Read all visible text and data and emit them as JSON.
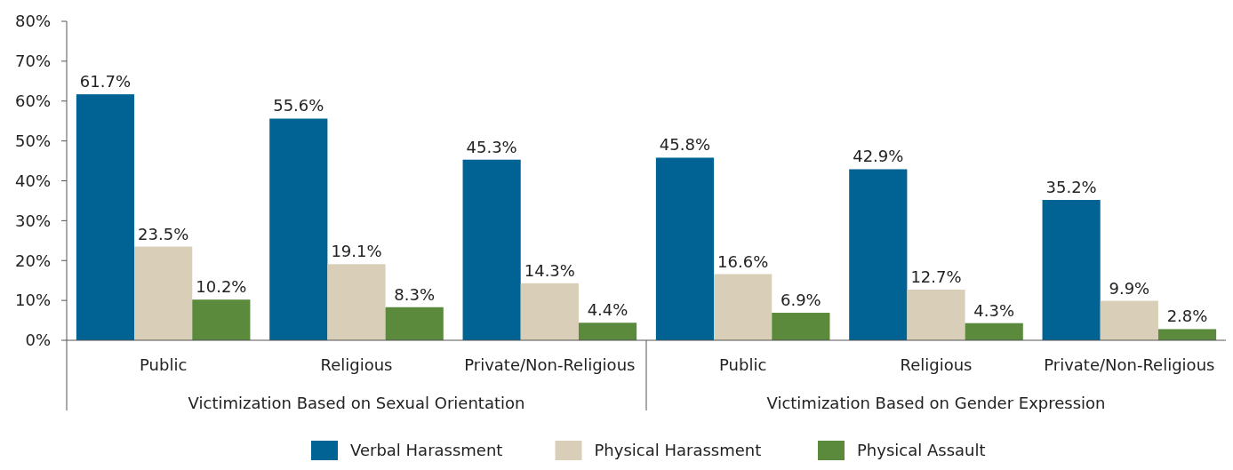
{
  "chart_data": {
    "type": "bar",
    "categories": [
      "Public",
      "Religious",
      "Private/Non-Religious",
      "Public",
      "Religious",
      "Private/Non-Religious"
    ],
    "series": [
      {
        "name": "Verbal Harassment",
        "color": "#006394",
        "values": [
          61.7,
          55.6,
          45.3,
          45.8,
          42.9,
          35.2
        ],
        "value_labels": [
          "61.7%",
          "55.6%",
          "45.3%",
          "45.8%",
          "42.9%",
          "35.2%"
        ]
      },
      {
        "name": "Physical Harassment",
        "color": "#d9cfb8",
        "values": [
          23.5,
          19.1,
          14.3,
          16.6,
          12.7,
          9.9
        ],
        "value_labels": [
          "23.5%",
          "19.1%",
          "14.3%",
          "16.6%",
          "12.7%",
          "9.9%"
        ]
      },
      {
        "name": "Physical Assault",
        "color": "#5b8a3c",
        "values": [
          10.2,
          8.3,
          4.4,
          6.9,
          4.3,
          2.8
        ],
        "value_labels": [
          "10.2%",
          "8.3%",
          "4.4%",
          "6.9%",
          "4.3%",
          "2.8%"
        ]
      }
    ],
    "ylim": [
      0,
      80
    ],
    "yticks": [
      {
        "value": 0,
        "label": "0%"
      },
      {
        "value": 10,
        "label": "10%"
      },
      {
        "value": 20,
        "label": "20%"
      },
      {
        "value": 30,
        "label": "30%"
      },
      {
        "value": 40,
        "label": "40%"
      },
      {
        "value": 50,
        "label": "50%"
      },
      {
        "value": 60,
        "label": "60%"
      },
      {
        "value": 70,
        "label": "70%"
      },
      {
        "value": 80,
        "label": "80%"
      }
    ],
    "annotations": [
      "Victimization Based on Sexual Orientation",
      "Victimization Based on Gender Expression"
    ],
    "legend": "bottom",
    "grid": false
  }
}
